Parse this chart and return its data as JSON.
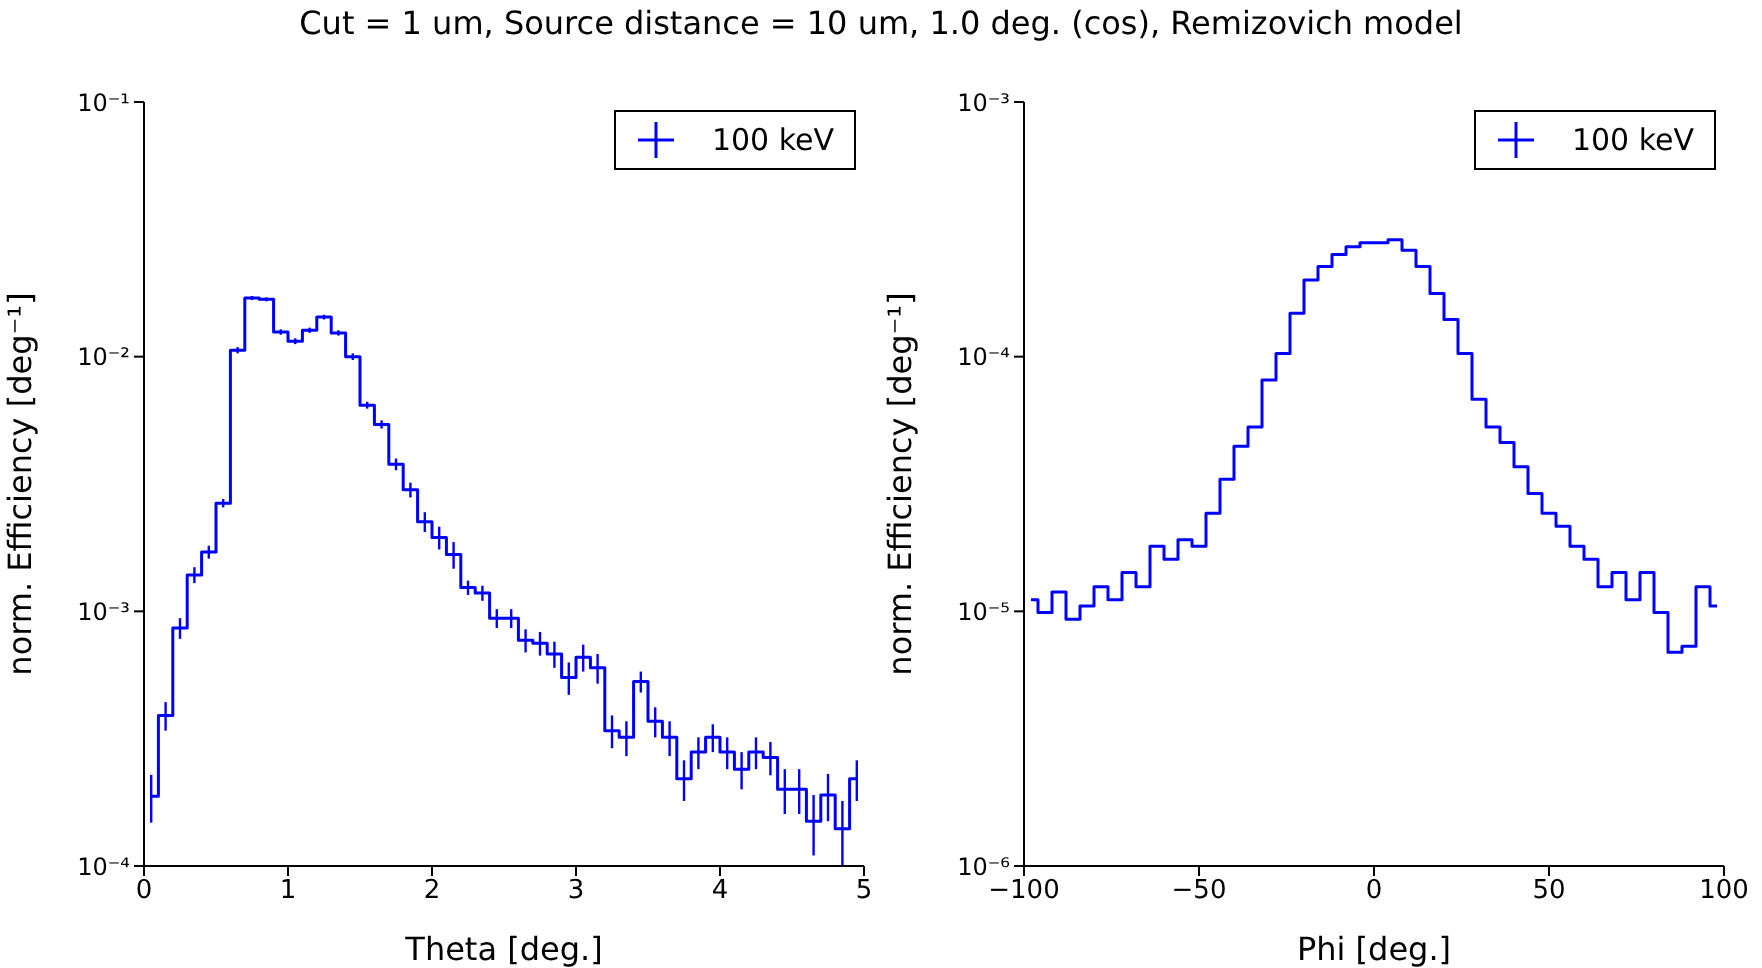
{
  "chart_data": [
    {
      "type": "step",
      "title": "Cut = 1 um, Source distance = 10 um, 1.0 deg. (cos), Remizovich model",
      "xlabel": "Theta [deg.]",
      "ylabel": "norm. Efficiency [deg⁻¹]",
      "log": "y",
      "legend": "top right",
      "xlim": [
        0,
        5
      ],
      "xticks": [
        0,
        1,
        2,
        3,
        4,
        5
      ],
      "ylim": [
        0.0001,
        0.1
      ],
      "yticks": [
        {
          "value": 0.0001,
          "label": "10⁻⁴"
        },
        {
          "value": 0.001,
          "label": "10⁻³"
        },
        {
          "value": 0.01,
          "label": "10⁻²"
        },
        {
          "value": 0.1,
          "label": "10⁻¹"
        }
      ],
      "x": [
        0.05,
        0.15,
        0.25,
        0.35,
        0.45,
        0.55,
        0.65,
        0.75,
        0.85,
        0.95,
        1.05,
        1.15,
        1.25,
        1.35,
        1.45,
        1.55,
        1.65,
        1.75,
        1.85,
        1.95,
        2.05,
        2.15,
        2.25,
        2.35,
        2.45,
        2.55,
        2.65,
        2.75,
        2.85,
        2.95,
        3.05,
        3.15,
        3.25,
        3.35,
        3.45,
        3.55,
        3.65,
        3.75,
        3.85,
        3.95,
        4.05,
        4.15,
        4.25,
        4.35,
        4.45,
        4.55,
        4.65,
        4.75,
        4.85,
        4.95
      ],
      "series": [
        {
          "name": "100 keV",
          "color": "#0000ff",
          "values": [
            0.000188,
            0.00039,
            0.00086,
            0.00139,
            0.00171,
            0.00266,
            0.0106,
            0.017,
            0.0168,
            0.0125,
            0.0115,
            0.0127,
            0.0143,
            0.0124,
            0.01,
            0.00645,
            0.00542,
            0.00378,
            0.003,
            0.00225,
            0.00195,
            0.00167,
            0.00124,
            0.00118,
            0.00094,
            0.00094,
            0.00077,
            0.00075,
            0.00068,
            0.00055,
            0.00066,
            0.0006,
            0.00034,
            0.00032,
            0.00053,
            0.00037,
            0.00032,
            0.00022,
            0.00028,
            0.00032,
            0.00028,
            0.00024,
            0.00028,
            0.000267,
            0.0002,
            0.0002,
            0.00015,
            0.00019,
            0.00014,
            0.00022
          ],
          "errors": [
            4e-05,
            5e-05,
            8e-05,
            0.0001,
            0.0001,
            0.0001,
            0.0003,
            0.0003,
            0.0003,
            0.0003,
            0.0003,
            0.0003,
            0.0003,
            0.0003,
            0.0003,
            0.0002,
            0.0002,
            0.0002,
            0.0002,
            0.0002,
            0.0002,
            0.0002,
            8e-05,
            8e-05,
            8e-05,
            8e-05,
            8e-05,
            8e-05,
            8e-05,
            8e-05,
            8e-05,
            8e-05,
            5e-05,
            5e-05,
            5e-05,
            5e-05,
            5e-05,
            4e-05,
            4e-05,
            4e-05,
            4e-05,
            4e-05,
            4e-05,
            4e-05,
            4e-05,
            4e-05,
            4e-05,
            4e-05,
            4e-05,
            4e-05
          ]
        }
      ]
    },
    {
      "type": "step",
      "xlabel": "Phi [deg.]",
      "ylabel": "norm. Efficiency [deg⁻¹]",
      "log": "y",
      "legend": "top right",
      "xlim": [
        -100,
        100
      ],
      "xticks": [
        {
          "value": -100,
          "label": "−100"
        },
        {
          "value": -50,
          "label": "−50"
        },
        0,
        50,
        100
      ],
      "ylim": [
        1e-06,
        0.001
      ],
      "yticks": [
        {
          "value": 1e-06,
          "label": "10⁻⁶"
        },
        {
          "value": 1e-05,
          "label": "10⁻⁵"
        },
        {
          "value": 0.0001,
          "label": "10⁻⁴"
        },
        {
          "value": 0.001,
          "label": "10⁻³"
        }
      ],
      "x": [
        -98,
        -94,
        -90,
        -86,
        -82,
        -78,
        -74,
        -70,
        -66,
        -62,
        -58,
        -54,
        -50,
        -46,
        -42,
        -38,
        -34,
        -30,
        -26,
        -22,
        -18,
        -14,
        -10,
        -6,
        -2,
        2,
        6,
        10,
        14,
        18,
        22,
        26,
        30,
        34,
        38,
        42,
        46,
        50,
        54,
        58,
        62,
        66,
        70,
        74,
        78,
        82,
        86,
        90,
        94,
        98
      ],
      "series": [
        {
          "name": "100 keV",
          "color": "#0000ff",
          "values": [
            1.11e-05,
            9.9e-06,
            1.19e-05,
            9.3e-06,
            1.05e-05,
            1.25e-05,
            1.11e-05,
            1.42e-05,
            1.25e-05,
            1.8e-05,
            1.6e-05,
            1.91e-05,
            1.8e-05,
            2.43e-05,
            3.3e-05,
            4.45e-05,
            5.3e-05,
            8.1e-05,
            0.000103,
            0.000148,
            0.0002,
            0.000226,
            0.000252,
            0.00027,
            0.00028,
            0.00028,
            0.000288,
            0.000262,
            0.000226,
            0.000177,
            0.00014,
            0.000103,
            6.8e-05,
            5.3e-05,
            4.6e-05,
            3.7e-05,
            2.9e-05,
            2.43e-05,
            2.16e-05,
            1.8e-05,
            1.6e-05,
            1.25e-05,
            1.42e-05,
            1.11e-05,
            1.42e-05,
            9.9e-06,
            6.9e-06,
            7.3e-06,
            1.25e-05,
            1.05e-05
          ]
        }
      ]
    }
  ]
}
